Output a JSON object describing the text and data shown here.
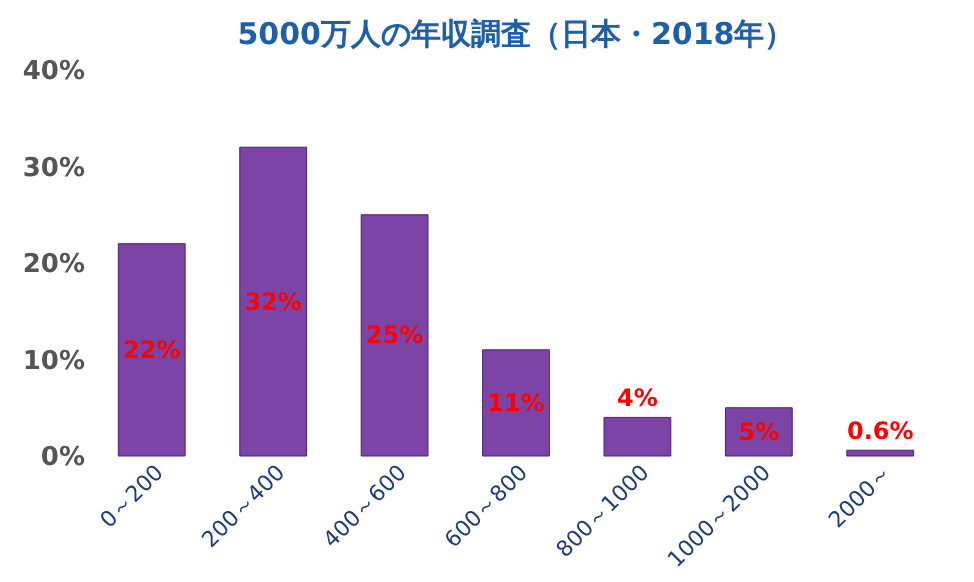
{
  "chart_data": {
    "type": "bar",
    "title": "5000万人の年収調査（日本・2018年）",
    "categories": [
      "0～200",
      "200～400",
      "400～600",
      "600～800",
      "800～1000",
      "1000～2000",
      "2000～"
    ],
    "values": [
      22,
      32,
      25,
      11,
      4,
      5,
      0.6
    ],
    "value_labels": [
      "22%",
      "32%",
      "25%",
      "11%",
      "4%",
      "5%",
      "0.6%"
    ],
    "color": "#7d44a8",
    "ylim": [
      0,
      40
    ],
    "yticks": [
      {
        "value": 0,
        "label": "0%"
      },
      {
        "value": 10,
        "label": "10%"
      },
      {
        "value": 20,
        "label": "20%"
      },
      {
        "value": 30,
        "label": "30%"
      },
      {
        "value": 40,
        "label": "40%"
      }
    ],
    "grid": false
  }
}
